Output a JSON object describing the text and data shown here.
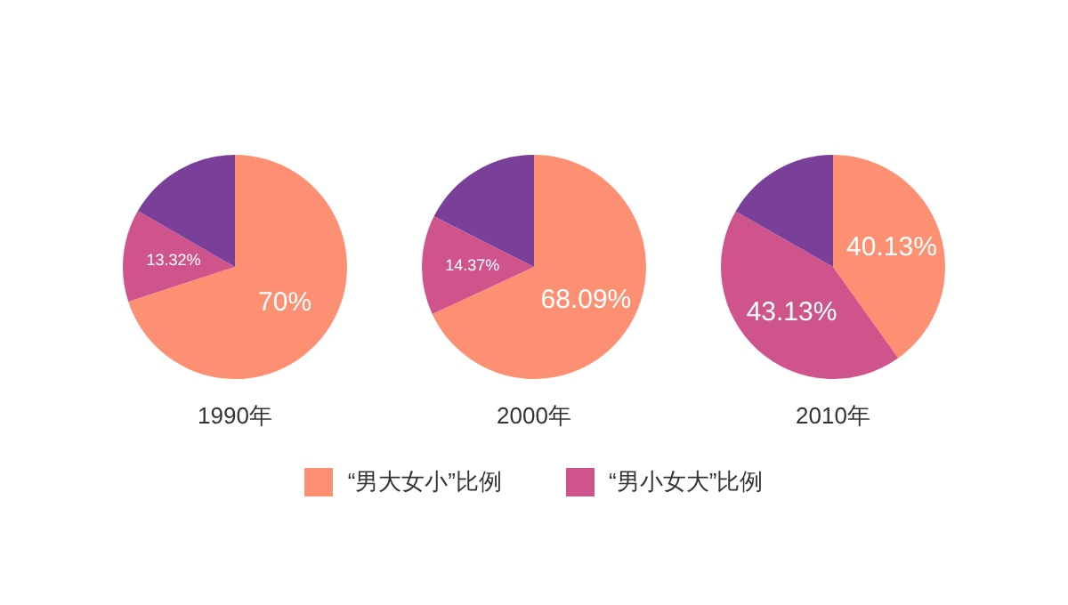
{
  "chart_data": [
    {
      "type": "pie",
      "title": "1990年",
      "categories": [
        "“男大女小”比例",
        "“男小女大”比例",
        null
      ],
      "values": [
        70,
        13.32,
        16.68
      ],
      "value_labels": [
        "70%",
        "13.32%",
        null
      ],
      "colors": [
        "#fd9072",
        "#d0548c",
        "#7a3f99"
      ],
      "legend": "bottom"
    },
    {
      "type": "pie",
      "title": "2000年",
      "categories": [
        null,
        null,
        null
      ],
      "values": [
        68.09,
        14.37,
        17.54
      ],
      "value_labels": [
        "68.09%",
        "14.37%",
        null
      ],
      "colors": [
        "#fd9072",
        "#d0548c",
        "#7a3f99"
      ]
    },
    {
      "type": "pie",
      "title": "2010年",
      "categories": [
        null,
        null,
        null
      ],
      "values": [
        40.13,
        43.13,
        16.74
      ],
      "value_labels": [
        "40.13%",
        "43.13%",
        null
      ],
      "colors": [
        "#fd9072",
        "#d0548c",
        "#7a3f99"
      ]
    }
  ]
}
